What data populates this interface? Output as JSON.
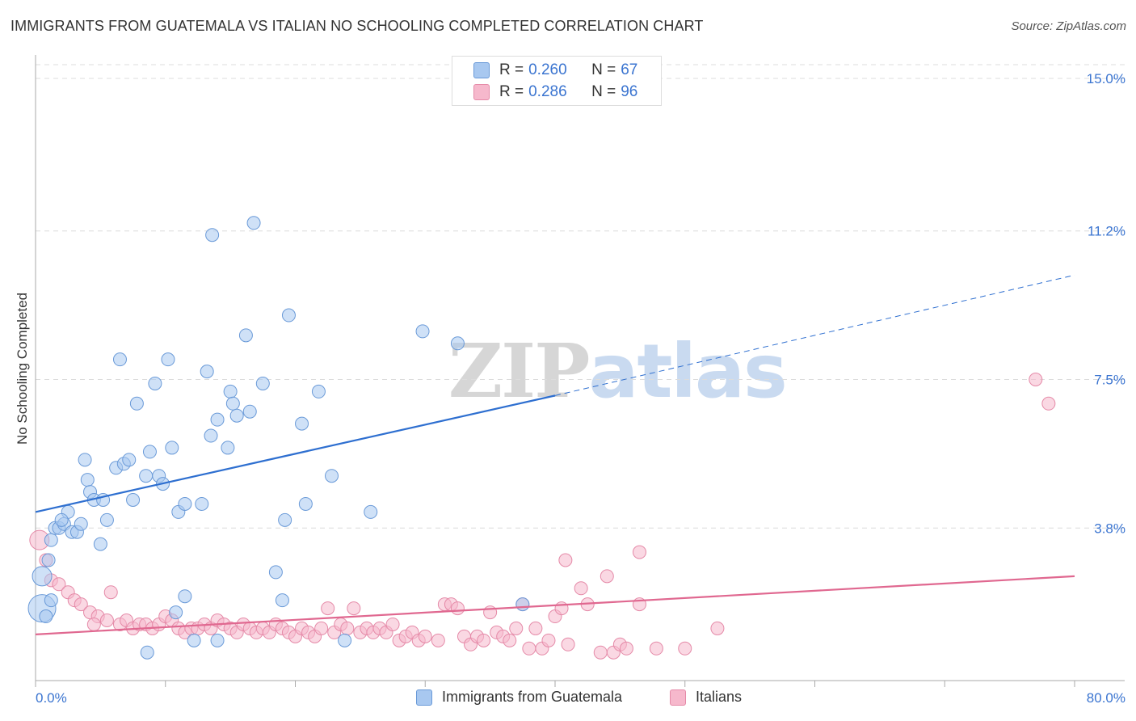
{
  "header": {
    "title": "IMMIGRANTS FROM GUATEMALA VS ITALIAN NO SCHOOLING COMPLETED CORRELATION CHART",
    "source": "Source: ZipAtlas.com"
  },
  "legend": {
    "rows": [
      {
        "r_label": "R =",
        "r_value": "0.260",
        "n_label": "N =",
        "n_value": "67"
      },
      {
        "r_label": "R =",
        "r_value": "0.286",
        "n_label": "N =",
        "n_value": "96"
      }
    ]
  },
  "watermark": {
    "zip": "ZIP",
    "atlas": "atlas"
  },
  "colors": {
    "guatemala_fill": "#a8c8f0",
    "guatemala_stroke": "#6a9ad8",
    "guatemala_line": "#2e6fd0",
    "italians_fill": "#f6b8cc",
    "italians_stroke": "#e58aa8",
    "italians_line": "#e06890",
    "tick_label": "#3a74d0",
    "grid": "#dcdcdc"
  },
  "chart_data": {
    "type": "scatter",
    "ylabel": "No Schooling Completed",
    "xlim": [
      0,
      80
    ],
    "ylim": [
      0,
      15
    ],
    "x_tick_labels": [
      {
        "value": 0,
        "label": "0.0%"
      },
      {
        "value": 80,
        "label": "80.0%"
      }
    ],
    "y_tick_labels": [
      {
        "value": 3.8,
        "label": "3.8%"
      },
      {
        "value": 7.5,
        "label": "7.5%"
      },
      {
        "value": 11.2,
        "label": "11.2%"
      },
      {
        "value": 15.0,
        "label": "15.0%"
      }
    ],
    "grid": true,
    "legend_position": "top-center",
    "series": [
      {
        "name": "Immigrants from Guatemala",
        "points": [
          [
            0.5,
            1.8,
            3
          ],
          [
            0.5,
            2.6,
            2
          ],
          [
            1,
            3.0,
            1
          ],
          [
            1.2,
            3.5,
            1
          ],
          [
            1.5,
            3.8,
            1
          ],
          [
            1.8,
            3.8,
            1
          ],
          [
            2.2,
            3.9,
            1
          ],
          [
            2.8,
            3.7,
            1
          ],
          [
            3.2,
            3.7,
            1
          ],
          [
            2.5,
            4.2,
            1
          ],
          [
            2.0,
            4.0,
            1
          ],
          [
            3.5,
            3.9,
            1
          ],
          [
            4.0,
            5.0,
            1
          ],
          [
            4.2,
            4.7,
            1
          ],
          [
            4.5,
            4.5,
            1
          ],
          [
            5.2,
            4.5,
            1
          ],
          [
            5.5,
            4.0,
            1
          ],
          [
            3.8,
            5.5,
            1
          ],
          [
            5.0,
            3.4,
            1
          ],
          [
            6.2,
            5.3,
            1
          ],
          [
            6.8,
            5.4,
            1
          ],
          [
            7.2,
            5.5,
            1
          ],
          [
            7.5,
            4.5,
            1
          ],
          [
            8.5,
            5.1,
            1
          ],
          [
            9.5,
            5.1,
            1
          ],
          [
            9.8,
            4.9,
            1
          ],
          [
            8.8,
            5.7,
            1
          ],
          [
            10.5,
            5.8,
            1
          ],
          [
            11.0,
            4.2,
            1
          ],
          [
            11.5,
            4.4,
            1
          ],
          [
            12.8,
            4.4,
            1
          ],
          [
            13.5,
            6.1,
            1
          ],
          [
            14.0,
            6.5,
            1
          ],
          [
            14.8,
            5.8,
            1
          ],
          [
            15.0,
            7.2,
            1
          ],
          [
            15.2,
            6.9,
            1
          ],
          [
            15.5,
            6.6,
            1
          ],
          [
            16.5,
            6.7,
            1
          ],
          [
            16.2,
            8.6,
            1
          ],
          [
            17.5,
            7.4,
            1
          ],
          [
            19.5,
            9.1,
            1
          ],
          [
            20.5,
            6.4,
            1
          ],
          [
            21.8,
            7.2,
            1
          ],
          [
            22.8,
            5.1,
            1
          ],
          [
            6.5,
            8.0,
            1
          ],
          [
            7.8,
            6.9,
            1
          ],
          [
            9.2,
            7.4,
            1
          ],
          [
            10.2,
            8.0,
            1
          ],
          [
            13.2,
            7.7,
            1
          ],
          [
            13.6,
            11.1,
            1
          ],
          [
            16.8,
            11.4,
            1
          ],
          [
            29.8,
            8.7,
            1
          ],
          [
            32.5,
            8.4,
            1
          ],
          [
            20.8,
            4.4,
            1
          ],
          [
            19.2,
            4.0,
            1
          ],
          [
            25.8,
            4.2,
            1
          ],
          [
            18.5,
            2.7,
            1
          ],
          [
            19.0,
            2.0,
            1
          ],
          [
            11.5,
            2.1,
            1
          ],
          [
            10.8,
            1.7,
            1
          ],
          [
            12.2,
            1.0,
            1
          ],
          [
            14.0,
            1.0,
            1
          ],
          [
            8.6,
            0.7,
            1
          ],
          [
            23.8,
            1.0,
            1
          ],
          [
            37.5,
            1.9,
            1
          ],
          [
            0.8,
            1.6,
            1
          ],
          [
            1.2,
            2.0,
            1
          ]
        ]
      },
      {
        "name": "Italians",
        "points": [
          [
            0.3,
            3.5,
            2
          ],
          [
            0.8,
            3.0,
            1
          ],
          [
            1.2,
            2.5,
            1
          ],
          [
            1.8,
            2.4,
            1
          ],
          [
            2.5,
            2.2,
            1
          ],
          [
            3.0,
            2.0,
            1
          ],
          [
            3.5,
            1.9,
            1
          ],
          [
            4.2,
            1.7,
            1
          ],
          [
            4.8,
            1.6,
            1
          ],
          [
            5.5,
            1.5,
            1
          ],
          [
            6.5,
            1.4,
            1
          ],
          [
            7.0,
            1.5,
            1
          ],
          [
            7.5,
            1.3,
            1
          ],
          [
            8.0,
            1.4,
            1
          ],
          [
            8.5,
            1.4,
            1
          ],
          [
            9.0,
            1.3,
            1
          ],
          [
            9.5,
            1.4,
            1
          ],
          [
            10.0,
            1.6,
            1
          ],
          [
            10.5,
            1.5,
            1
          ],
          [
            11.0,
            1.3,
            1
          ],
          [
            11.5,
            1.2,
            1
          ],
          [
            12.0,
            1.3,
            1
          ],
          [
            12.5,
            1.3,
            1
          ],
          [
            13.0,
            1.4,
            1
          ],
          [
            13.5,
            1.3,
            1
          ],
          [
            14.0,
            1.5,
            1
          ],
          [
            14.5,
            1.4,
            1
          ],
          [
            15.0,
            1.3,
            1
          ],
          [
            15.5,
            1.2,
            1
          ],
          [
            16.0,
            1.4,
            1
          ],
          [
            16.5,
            1.3,
            1
          ],
          [
            17.0,
            1.2,
            1
          ],
          [
            17.5,
            1.3,
            1
          ],
          [
            18.0,
            1.2,
            1
          ],
          [
            18.5,
            1.4,
            1
          ],
          [
            19.0,
            1.3,
            1
          ],
          [
            19.5,
            1.2,
            1
          ],
          [
            20.0,
            1.1,
            1
          ],
          [
            20.5,
            1.3,
            1
          ],
          [
            21.0,
            1.2,
            1
          ],
          [
            21.5,
            1.1,
            1
          ],
          [
            22.0,
            1.3,
            1
          ],
          [
            22.5,
            1.8,
            1
          ],
          [
            23.0,
            1.2,
            1
          ],
          [
            23.5,
            1.4,
            1
          ],
          [
            24.0,
            1.3,
            1
          ],
          [
            24.5,
            1.8,
            1
          ],
          [
            25.0,
            1.2,
            1
          ],
          [
            25.5,
            1.3,
            1
          ],
          [
            26.0,
            1.2,
            1
          ],
          [
            26.5,
            1.3,
            1
          ],
          [
            27.0,
            1.2,
            1
          ],
          [
            27.5,
            1.4,
            1
          ],
          [
            28.0,
            1.0,
            1
          ],
          [
            28.5,
            1.1,
            1
          ],
          [
            29.0,
            1.2,
            1
          ],
          [
            29.5,
            1.0,
            1
          ],
          [
            30.0,
            1.1,
            1
          ],
          [
            31.0,
            1.0,
            1
          ],
          [
            31.5,
            1.9,
            1
          ],
          [
            32.0,
            1.9,
            1
          ],
          [
            32.5,
            1.8,
            1
          ],
          [
            33.0,
            1.1,
            1
          ],
          [
            33.5,
            0.9,
            1
          ],
          [
            34.0,
            1.1,
            1
          ],
          [
            34.5,
            1.0,
            1
          ],
          [
            35.0,
            1.7,
            1
          ],
          [
            35.5,
            1.2,
            1
          ],
          [
            36.0,
            1.1,
            1
          ],
          [
            36.5,
            1.0,
            1
          ],
          [
            37.0,
            1.3,
            1
          ],
          [
            37.5,
            1.9,
            1
          ],
          [
            38.0,
            0.8,
            1
          ],
          [
            38.5,
            1.3,
            1
          ],
          [
            39.0,
            0.8,
            1
          ],
          [
            39.5,
            1.0,
            1
          ],
          [
            40.0,
            1.6,
            1
          ],
          [
            40.5,
            1.8,
            1
          ],
          [
            41.0,
            0.9,
            1
          ],
          [
            42.0,
            2.3,
            1
          ],
          [
            42.5,
            1.9,
            1
          ],
          [
            40.8,
            3.0,
            1
          ],
          [
            43.5,
            0.7,
            1
          ],
          [
            44.0,
            2.6,
            1
          ],
          [
            44.5,
            0.7,
            1
          ],
          [
            45.0,
            0.9,
            1
          ],
          [
            45.5,
            0.8,
            1
          ],
          [
            46.5,
            3.2,
            1
          ],
          [
            46.5,
            1.9,
            1
          ],
          [
            47.8,
            0.8,
            1
          ],
          [
            50.0,
            0.8,
            1
          ],
          [
            52.5,
            1.3,
            1
          ],
          [
            77.0,
            7.5,
            1
          ],
          [
            78.0,
            6.9,
            1
          ],
          [
            5.8,
            2.2,
            1
          ],
          [
            4.5,
            1.4,
            1
          ]
        ]
      }
    ],
    "trend_lines": [
      {
        "series": "Immigrants from Guatemala",
        "solid": [
          [
            0,
            4.2
          ],
          [
            40,
            7.1
          ]
        ],
        "dashed": [
          [
            40,
            7.1
          ],
          [
            80,
            10.1
          ]
        ]
      },
      {
        "series": "Italians",
        "solid": [
          [
            0,
            1.15
          ],
          [
            80,
            2.6
          ]
        ]
      }
    ]
  },
  "bottom_legend": {
    "items": [
      {
        "label": "Immigrants from Guatemala"
      },
      {
        "label": "Italians"
      }
    ]
  }
}
